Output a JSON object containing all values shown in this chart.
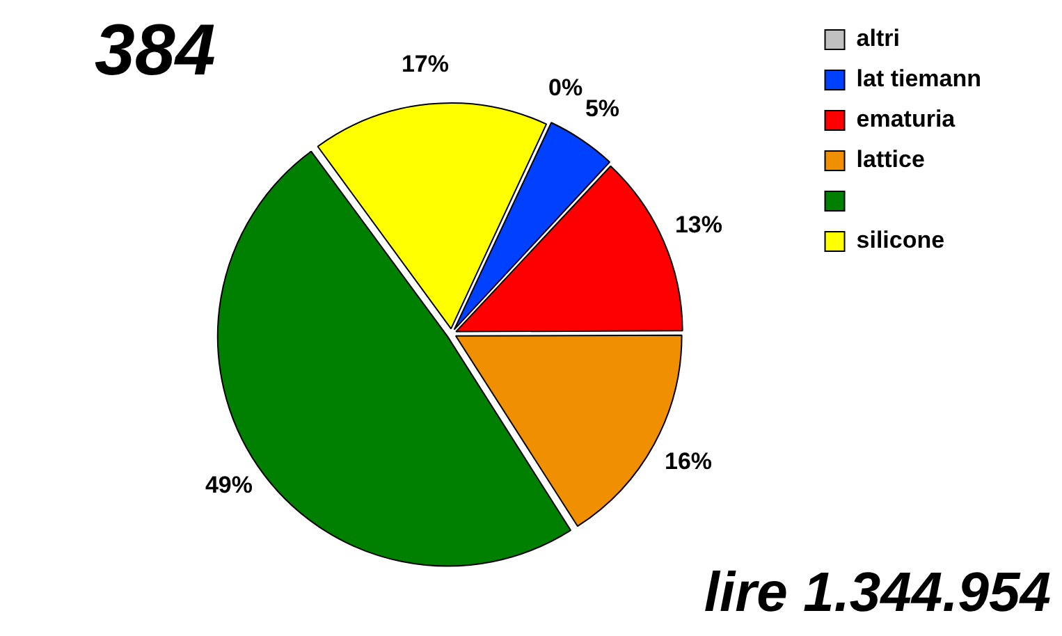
{
  "chart_data": {
    "type": "pie",
    "title": "384",
    "categories": [
      "altri",
      "lat tiemann",
      "ematuria",
      "lattice",
      null,
      "silicone"
    ],
    "values": [
      0,
      5,
      13,
      16,
      49,
      17
    ],
    "value_labels": [
      "0%",
      "5%",
      "13%",
      "16%",
      "49%",
      "17%"
    ],
    "colors": [
      "#c0c0c0",
      "#0040ff",
      "#ff0000",
      "#f09000",
      "#008000",
      "#ffff00"
    ],
    "legend": "right",
    "annotations": [
      "lire 1.344.954"
    ]
  }
}
